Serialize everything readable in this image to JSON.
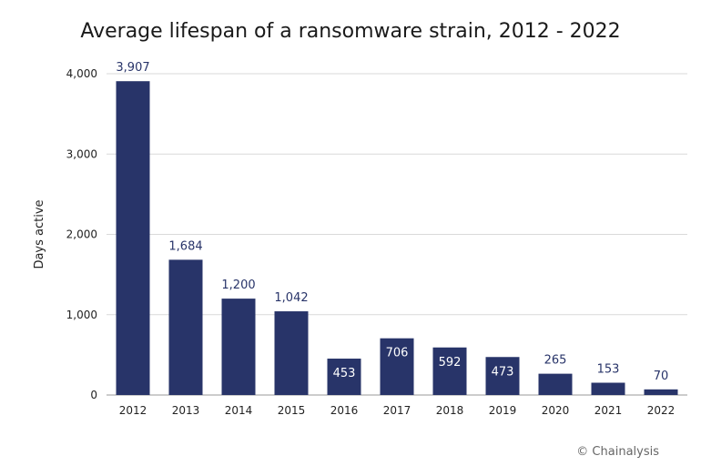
{
  "chart_data": {
    "type": "bar",
    "title": "Average lifespan of a ransomware strain, 2012 - 2022",
    "xlabel": "",
    "ylabel": "Days active",
    "categories": [
      "2012",
      "2013",
      "2014",
      "2015",
      "2016",
      "2017",
      "2018",
      "2019",
      "2020",
      "2021",
      "2022"
    ],
    "values": [
      3907,
      1684,
      1200,
      1042,
      453,
      706,
      592,
      473,
      265,
      153,
      70
    ],
    "value_labels": [
      "3,907",
      "1,684",
      "1,200",
      "1,042",
      "453",
      "706",
      "592",
      "473",
      "265",
      "153",
      "70"
    ],
    "ylim": [
      0,
      4000
    ],
    "yticks": [
      0,
      1000,
      2000,
      3000,
      4000
    ],
    "ytick_labels": [
      "0",
      "1,000",
      "2,000",
      "3,000",
      "4,000"
    ],
    "grid": true,
    "legend": "none",
    "colors": {
      "bar": "#283469",
      "label_outside": "#283469",
      "label_inside": "#ffffff",
      "grid": "#d9d9d9"
    }
  },
  "credit": "© Chainalysis"
}
